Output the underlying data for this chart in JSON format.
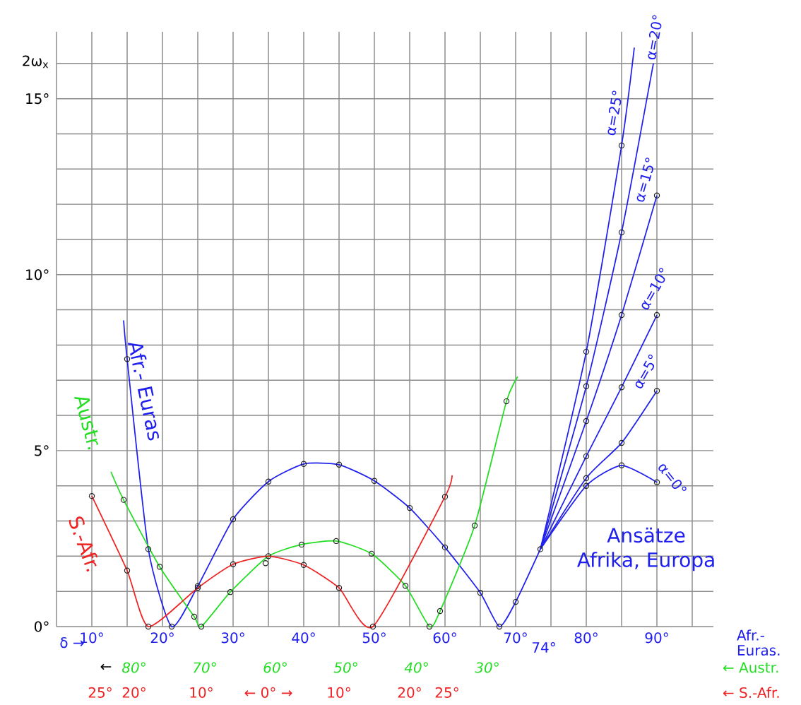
{
  "chart_data": {
    "type": "line",
    "ylabel": "2ω$_{x}$",
    "xlabel": "Afr.- Euras.",
    "x2label": "← Austr.",
    "xlim": [
      5,
      98
    ],
    "ylim": [
      0,
      16.9
    ],
    "xticks": [
      {
        "value": 5,
        "label": null
      },
      {
        "value": 10,
        "label": "10°"
      },
      {
        "value": 15,
        "label": null
      },
      {
        "value": 20,
        "label": "20°"
      },
      {
        "value": 25,
        "label": null
      },
      {
        "value": 30,
        "label": "30°"
      },
      {
        "value": 35,
        "label": null
      },
      {
        "value": 40,
        "label": "40°"
      },
      {
        "value": 45,
        "label": null
      },
      {
        "value": 50,
        "label": "50°"
      },
      {
        "value": 55,
        "label": null
      },
      {
        "value": 60,
        "label": "60°"
      },
      {
        "value": 65,
        "label": null
      },
      {
        "value": 70,
        "label": "70°"
      },
      {
        "value": 75,
        "label": null
      },
      {
        "value": 80,
        "label": "80°"
      },
      {
        "value": 85,
        "label": null
      },
      {
        "value": 90,
        "label": "90°"
      },
      {
        "value": 95,
        "label": null
      }
    ],
    "yticks": [
      {
        "value": 0,
        "label": "0°"
      },
      {
        "value": 1,
        "label": null
      },
      {
        "value": 2,
        "label": null
      },
      {
        "value": 3,
        "label": null
      },
      {
        "value": 4,
        "label": null
      },
      {
        "value": 5,
        "label": "5°"
      },
      {
        "value": 6,
        "label": null
      },
      {
        "value": 7,
        "label": null
      },
      {
        "value": 8,
        "label": null
      },
      {
        "value": 9,
        "label": null
      },
      {
        "value": 10,
        "label": "10°"
      },
      {
        "value": 11,
        "label": null
      },
      {
        "value": 12,
        "label": null
      },
      {
        "value": 13,
        "label": null
      },
      {
        "value": 14,
        "label": null
      },
      {
        "value": 15,
        "label": "15°"
      },
      {
        "value": 16,
        "label": null
      }
    ],
    "x2lim": [
      91,
      -2
    ],
    "x2ticks": [
      {
        "value": 80,
        "label": "80°"
      },
      {
        "value": 70,
        "label": "70°"
      },
      {
        "value": 60,
        "label": "60°"
      },
      {
        "value": 50,
        "label": "50°"
      },
      {
        "value": 40,
        "label": "40°"
      },
      {
        "value": 30,
        "label": "30°"
      }
    ],
    "grid": true,
    "annotations": [
      "74°",
      "δ →",
      "Ansätze",
      "Afrika, Europa",
      "←",
      "25°",
      "20°",
      "10°",
      "← 0° →",
      "10°",
      "20°",
      "25°",
      "← S.-Afr."
    ],
    "series": [
      {
        "name": "Afr.- Euras",
        "color": "#2020ee",
        "x": [
          14.5,
          15,
          18,
          21.3,
          25,
          30,
          35,
          40,
          45,
          50,
          55,
          60,
          65,
          67.7,
          70,
          73.5
        ],
        "values": [
          8.7,
          7.6,
          2.2,
          0,
          1.15,
          3.05,
          4.12,
          4.62,
          4.6,
          4.14,
          3.37,
          2.25,
          0.96,
          0,
          0.7,
          2.2
        ]
      },
      {
        "name": "Austr.",
        "color": "#22dd22",
        "x": [
          12.7,
          14.5,
          19.6,
          24.5,
          25.5,
          29.6,
          35,
          39.7,
          44.6,
          49.6,
          54.4,
          57.8,
          59.3,
          64.2,
          68.7,
          70.3
        ],
        "values": [
          4.4,
          3.6,
          1.7,
          0.28,
          0,
          0.98,
          2.0,
          2.33,
          2.43,
          2.07,
          1.16,
          0,
          0.44,
          2.87,
          6.4,
          7.1
        ]
      },
      {
        "name": "S.-Afr.",
        "color": "#ee2222",
        "x": [
          10,
          15,
          18,
          25,
          30,
          35,
          40,
          45,
          49.8,
          60,
          61
        ],
        "values": [
          3.71,
          1.59,
          0,
          1.1,
          1.77,
          2.0,
          1.75,
          1.1,
          0,
          3.69,
          4.3
        ]
      },
      {
        "name": "α=0°",
        "color": "#2020ee",
        "x": [
          73.5,
          80,
          85,
          90
        ],
        "values": [
          2.2,
          4.0,
          4.58,
          4.1
        ]
      },
      {
        "name": "α=5°",
        "color": "#2020ee",
        "x": [
          73.5,
          80,
          85,
          90
        ],
        "values": [
          2.2,
          4.22,
          5.22,
          6.7
        ]
      },
      {
        "name": "α=10°",
        "color": "#2020ee",
        "x": [
          73.5,
          80,
          85,
          90
        ],
        "values": [
          2.2,
          4.84,
          6.8,
          8.85
        ]
      },
      {
        "name": "α=15°",
        "color": "#2020ee",
        "x": [
          73.5,
          80,
          85,
          90
        ],
        "values": [
          2.2,
          5.84,
          8.85,
          12.25
        ]
      },
      {
        "name": "α=20°",
        "color": "#2020ee",
        "x": [
          73.5,
          80,
          85,
          89.5
        ],
        "values": [
          2.2,
          6.83,
          11.2,
          16.0
        ]
      },
      {
        "name": "α=25°",
        "color": "#2020ee",
        "x": [
          73.5,
          80,
          85,
          86.8
        ],
        "values": [
          2.2,
          7.81,
          13.67,
          16.45
        ]
      },
      {
        "type": "scatter",
        "marker": "circle",
        "color": "#222222",
        "x": [
          15,
          18,
          21.3,
          25,
          30,
          35,
          40,
          45,
          50,
          55,
          60,
          65,
          67.7,
          70,
          73.5,
          80,
          85,
          90,
          80,
          85,
          90,
          80,
          85,
          90,
          80,
          85,
          90,
          80,
          85,
          80,
          85,
          14.5,
          19.6,
          24.5,
          25.5,
          29.6,
          34.6,
          35,
          39.7,
          44.6,
          49.6,
          54.4,
          57.8,
          59.3,
          64.2,
          68.7,
          10,
          15,
          18,
          25,
          30,
          40,
          45,
          49.8,
          60
        ],
        "values": [
          7.6,
          2.2,
          0,
          1.15,
          3.05,
          4.12,
          4.62,
          4.6,
          4.14,
          3.37,
          2.25,
          0.96,
          0,
          0.7,
          2.2,
          4.0,
          4.58,
          4.1,
          4.22,
          5.22,
          6.7,
          4.84,
          6.8,
          8.85,
          5.84,
          8.85,
          12.25,
          6.83,
          11.2,
          7.81,
          13.67,
          3.6,
          1.7,
          0.28,
          0,
          0.98,
          1.8,
          2.0,
          2.33,
          2.43,
          2.07,
          1.16,
          0,
          0.44,
          2.87,
          6.4,
          3.71,
          1.59,
          0,
          1.1,
          1.77,
          1.75,
          1.1,
          0,
          3.69
        ]
      }
    ]
  }
}
